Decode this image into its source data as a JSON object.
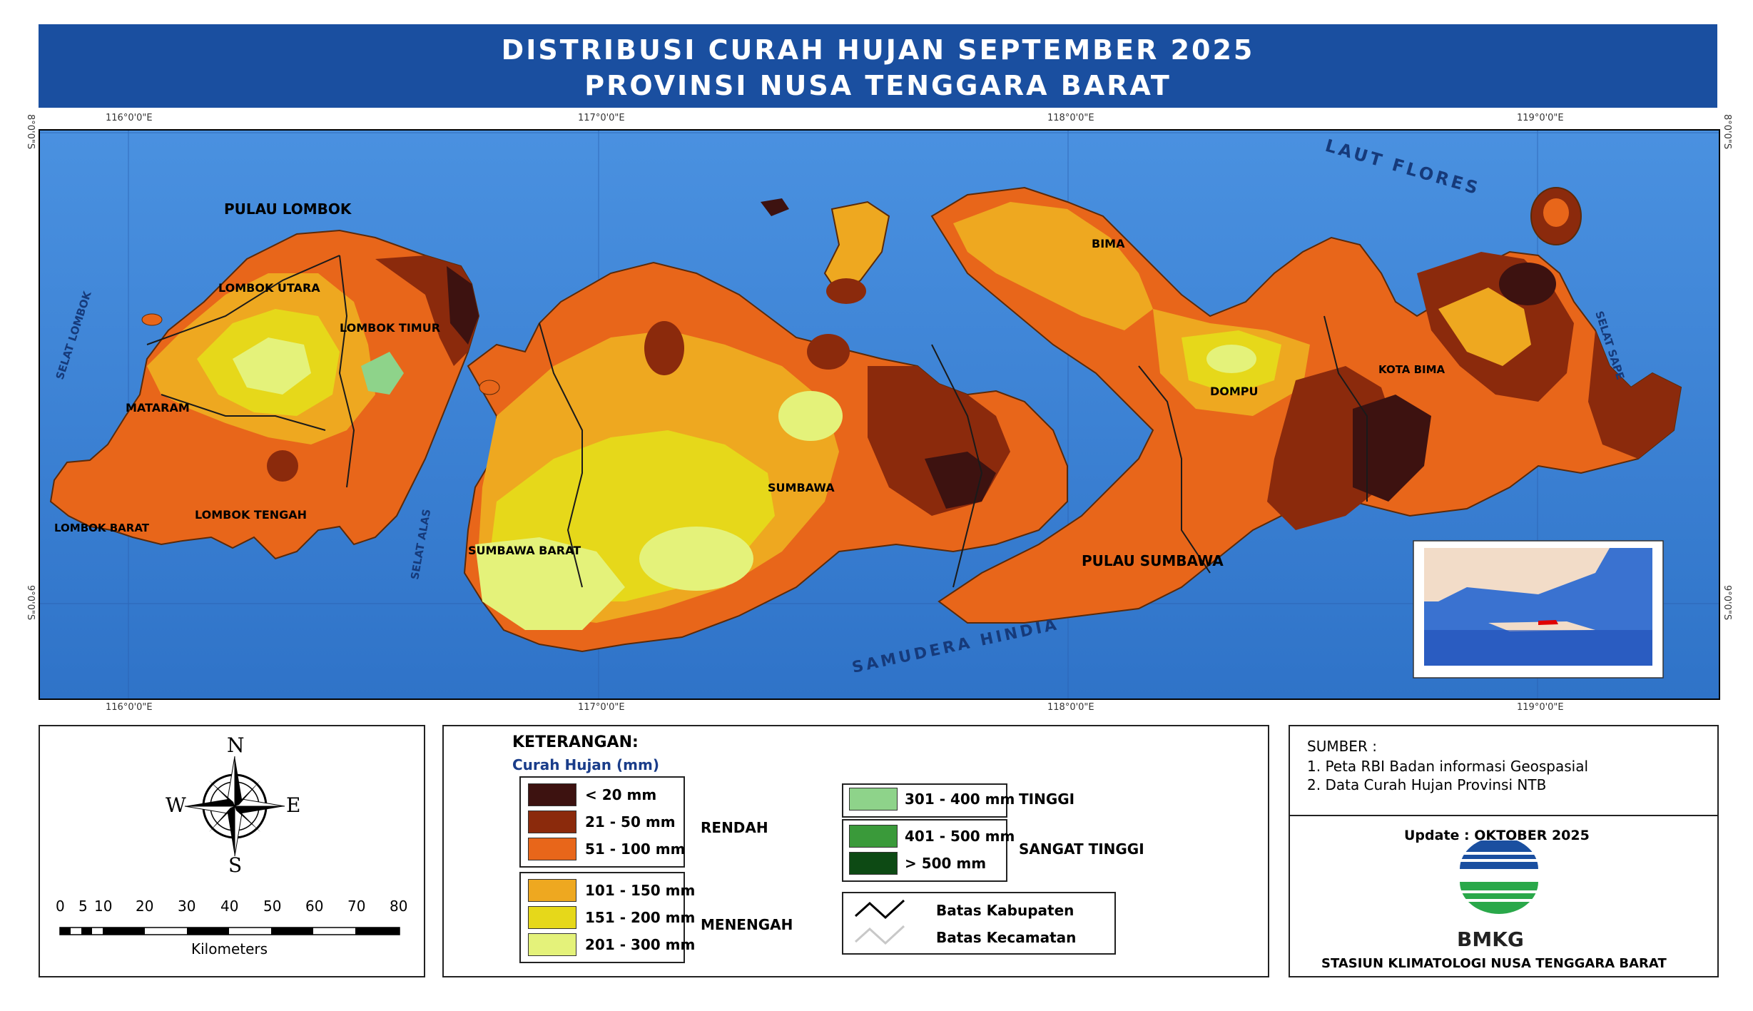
{
  "title": {
    "line1": "DISTRIBUSI CURAH HUJAN SEPTEMBER 2025",
    "line2": "PROVINSI NUSA TENGGARA BARAT"
  },
  "map": {
    "lon_ticks": [
      "116°0'0\"E",
      "117°0'0\"E",
      "118°0'0\"E",
      "119°0'0\"E"
    ],
    "lat_ticks": [
      "8°0'0\"S",
      "9°0'0\"S"
    ],
    "sea_labels": {
      "laut_flores": "LAUT FLORES",
      "samudera_hindia": "SAMUDERA HINDIA",
      "selat_lombok": "SELAT LOMBOK",
      "selat_alas": "SELAT ALAS",
      "selat_sape": "SELAT SAPE"
    },
    "island_labels": {
      "pulau_lombok": "PULAU LOMBOK",
      "pulau_sumbawa": "PULAU SUMBAWA"
    },
    "regency_labels": {
      "lombok_utara": "LOMBOK UTARA",
      "lombok_timur": "LOMBOK TIMUR",
      "mataram": "MATARAM",
      "lombok_barat": "LOMBOK BARAT",
      "lombok_tengah": "LOMBOK TENGAH",
      "sumbawa_barat": "SUMBAWA BARAT",
      "sumbawa": "SUMBAWA",
      "bima": "BIMA",
      "dompu": "DOMPU",
      "kota_bima": "KOTA BIMA"
    }
  },
  "compass": {
    "n": "N",
    "s": "S",
    "e": "E",
    "w": "W"
  },
  "scale": {
    "ticks": [
      "0",
      "5",
      "10",
      "20",
      "30",
      "40",
      "50",
      "60",
      "70",
      "80"
    ],
    "unit": "Kilometers"
  },
  "legend": {
    "heading": "KETERANGAN:",
    "subheading": "Curah Hujan (mm)",
    "classes": [
      {
        "label": "< 20 mm",
        "color": "#3d1210"
      },
      {
        "label": "21 - 50 mm",
        "color": "#8b2a0c"
      },
      {
        "label": "51 - 100 mm",
        "color": "#e8661a"
      },
      {
        "label": "101 - 150 mm",
        "color": "#eea820"
      },
      {
        "label": "151 - 200 mm",
        "color": "#e6d81a"
      },
      {
        "label": "201 - 300 mm",
        "color": "#e4f27a"
      },
      {
        "label": "301 - 400 mm",
        "color": "#8ed38a"
      },
      {
        "label": "401 - 500 mm",
        "color": "#3a9a3a"
      },
      {
        "label": "> 500 mm",
        "color": "#0d4a14"
      }
    ],
    "categories": {
      "rendah": "RENDAH",
      "menengah": "MENENGAH",
      "tinggi": "TINGGI",
      "sangat_tinggi": "SANGAT TINGGI"
    },
    "boundaries": {
      "kabupaten": "Batas Kabupaten",
      "kecamatan": "Batas Kecamatan"
    }
  },
  "source": {
    "heading": "SUMBER :",
    "items": [
      "1. Peta RBI Badan informasi Geospasial",
      "2. Data Curah Hujan Provinsi NTB"
    ]
  },
  "footer": {
    "update": "Update : OKTOBER 2025",
    "agency": "BMKG",
    "station": "STASIUN KLIMATOLOGI NUSA TENGGARA BARAT"
  }
}
